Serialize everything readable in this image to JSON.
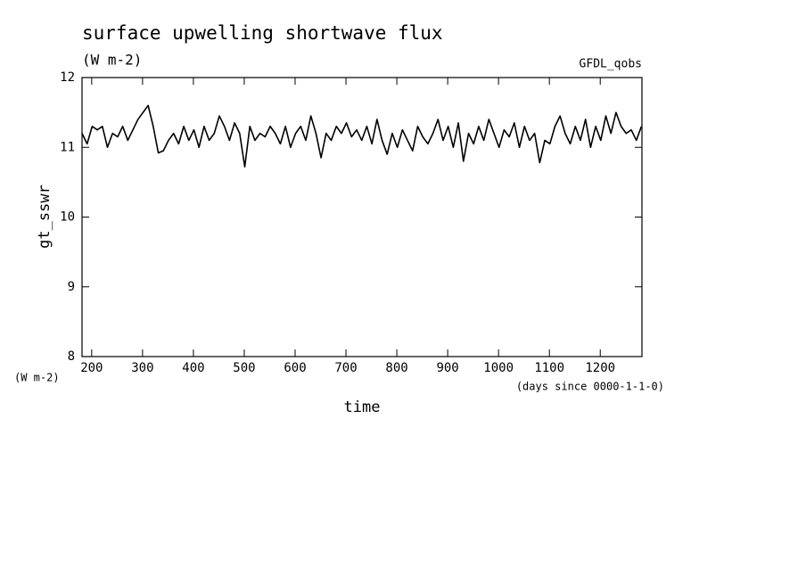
{
  "chart_data": {
    "type": "line",
    "title": "surface upwelling shortwave flux",
    "subtitle": "(W m-2)",
    "source_label": "GFDL_qobs",
    "y_label": "gt_sswr",
    "y_unit": "(W m-2)",
    "x_label": "time",
    "x_unit": "(days since 0000-1-1-0)",
    "xlim": [
      181,
      1282
    ],
    "ylim": [
      8,
      12
    ],
    "xticks": [
      200,
      300,
      400,
      500,
      600,
      700,
      800,
      900,
      1000,
      1100,
      1200
    ],
    "yticks": [
      8,
      9,
      10,
      11,
      12
    ],
    "x": [
      181,
      191,
      201,
      211,
      221,
      231,
      241,
      251,
      261,
      271,
      281,
      291,
      301,
      311,
      321,
      331,
      341,
      351,
      361,
      371,
      381,
      391,
      401,
      411,
      421,
      431,
      441,
      451,
      461,
      471,
      481,
      491,
      501,
      511,
      521,
      531,
      541,
      551,
      561,
      571,
      581,
      591,
      601,
      611,
      621,
      631,
      641,
      651,
      661,
      671,
      681,
      691,
      701,
      711,
      721,
      731,
      741,
      751,
      761,
      771,
      781,
      791,
      801,
      811,
      821,
      831,
      841,
      851,
      861,
      871,
      881,
      891,
      901,
      911,
      921,
      931,
      941,
      951,
      961,
      971,
      981,
      991,
      1001,
      1011,
      1021,
      1031,
      1041,
      1051,
      1061,
      1071,
      1081,
      1091,
      1101,
      1111,
      1121,
      1131,
      1141,
      1151,
      1161,
      1171,
      1181,
      1191,
      1201,
      1211,
      1221,
      1231,
      1241,
      1251,
      1261,
      1271,
      1281
    ],
    "series": [
      {
        "name": "gt_sswr",
        "color": "#000000",
        "values": [
          11.2,
          11.05,
          11.3,
          11.25,
          11.3,
          11.0,
          11.2,
          11.15,
          11.3,
          11.1,
          11.25,
          11.4,
          11.5,
          11.6,
          11.3,
          10.92,
          10.95,
          11.1,
          11.2,
          11.05,
          11.3,
          11.1,
          11.25,
          11.0,
          11.3,
          11.1,
          11.2,
          11.45,
          11.3,
          11.1,
          11.35,
          11.2,
          10.72,
          11.3,
          11.1,
          11.2,
          11.15,
          11.3,
          11.2,
          11.05,
          11.3,
          11.0,
          11.2,
          11.3,
          11.1,
          11.45,
          11.2,
          10.85,
          11.2,
          11.1,
          11.3,
          11.2,
          11.35,
          11.15,
          11.25,
          11.1,
          11.3,
          11.05,
          11.4,
          11.1,
          10.9,
          11.2,
          11.0,
          11.25,
          11.1,
          10.95,
          11.3,
          11.15,
          11.05,
          11.2,
          11.4,
          11.1,
          11.3,
          11.0,
          11.35,
          10.8,
          11.2,
          11.05,
          11.3,
          11.1,
          11.4,
          11.2,
          11.0,
          11.25,
          11.15,
          11.35,
          11.0,
          11.3,
          11.1,
          11.2,
          10.78,
          11.1,
          11.05,
          11.3,
          11.45,
          11.2,
          11.05,
          11.3,
          11.1,
          11.4,
          11.0,
          11.3,
          11.1,
          11.45,
          11.2,
          11.5,
          11.3,
          11.2,
          11.25,
          11.1,
          11.3
        ]
      }
    ]
  }
}
